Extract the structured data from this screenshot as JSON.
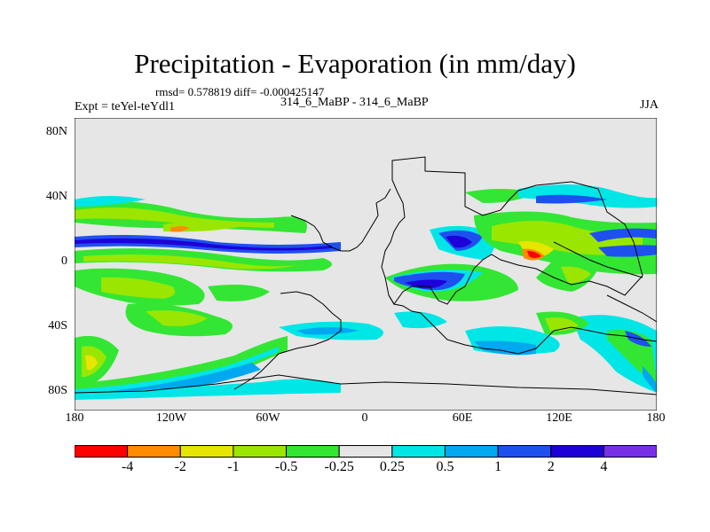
{
  "title": "Precipitation - Evaporation (in mm/day)",
  "stats": "rmsd= 0.578819 diff= -0.000425147",
  "experiment": "Expt = teYel-teYdl1",
  "runs": "314_6_MaBP - 314_6_MaBP",
  "season": "JJA",
  "map": {
    "lat_ticks": [
      "80N",
      "40N",
      "0",
      "40S",
      "80S"
    ],
    "lon_ticks": [
      "180",
      "120W",
      "60W",
      "0",
      "60E",
      "120E",
      "180"
    ]
  },
  "colorbar": {
    "levels": [
      "-4",
      "-2",
      "-1",
      "-0.5",
      "-0.25",
      "0.25",
      "0.5",
      "1",
      "2",
      "4"
    ],
    "colors": [
      "#ff0000",
      "#ff8c00",
      "#e6e600",
      "#9ae600",
      "#33e633",
      "#e6e6e6",
      "#00e6e6",
      "#00a8f0",
      "#1e50f0",
      "#1e00d8",
      "#7830e6"
    ]
  }
}
